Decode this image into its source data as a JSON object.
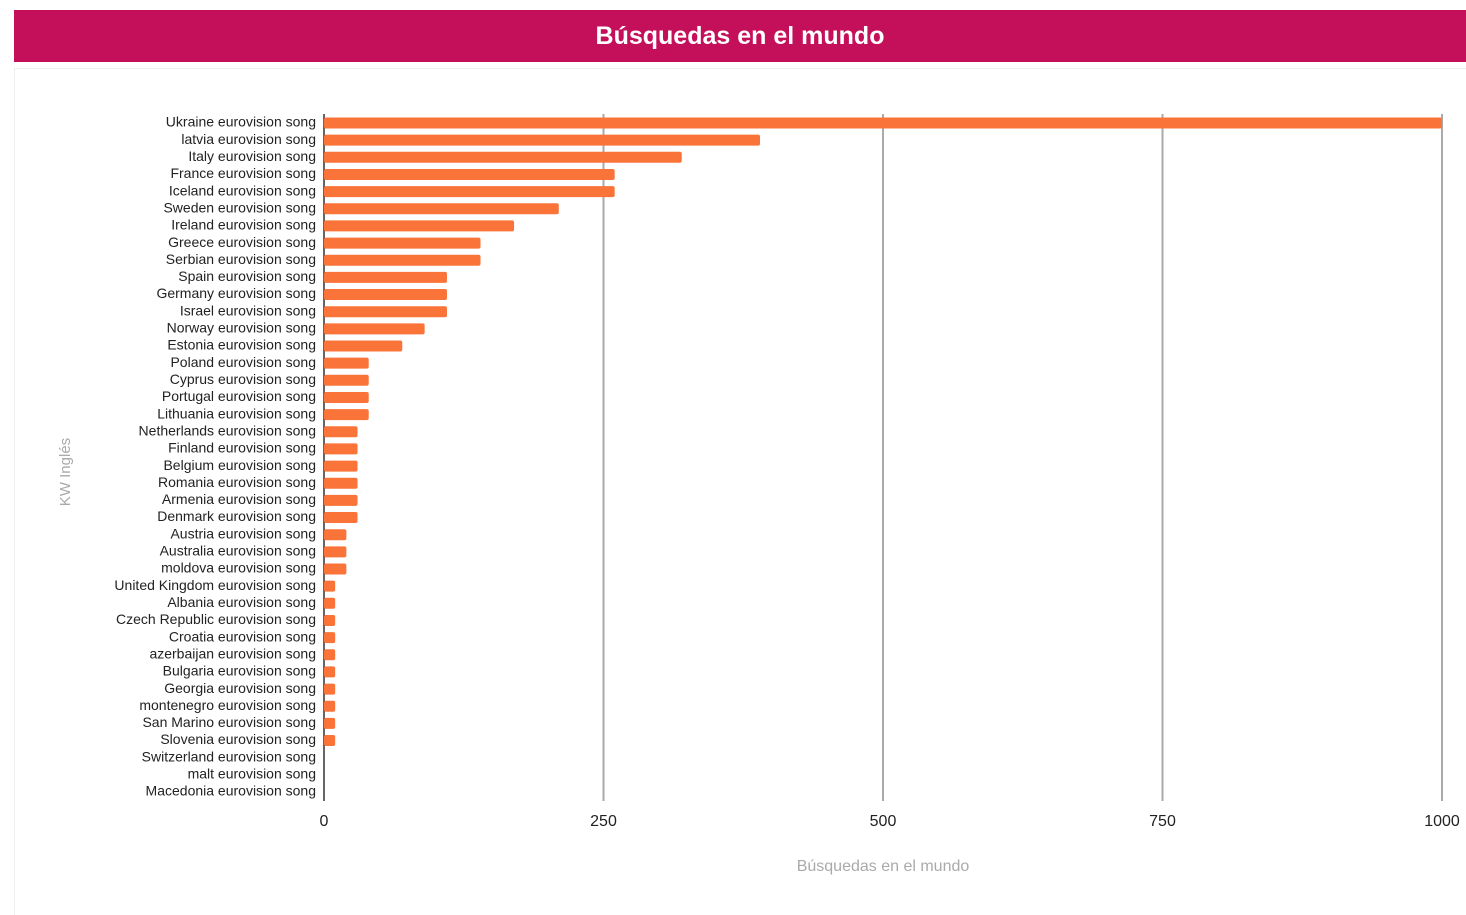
{
  "chart_data": {
    "type": "bar",
    "orientation": "horizontal",
    "title": "Búsquedas en el mundo",
    "x_label": "Búsquedas en el mundo",
    "y_label": "KW Inglés",
    "categories": [
      "Ukraine eurovision song",
      "latvia eurovision song",
      "Italy eurovision song",
      "France eurovision song",
      "Iceland eurovision song",
      "Sweden eurovision song",
      "Ireland eurovision song",
      "Greece eurovision song",
      "Serbian eurovision song",
      "Spain eurovision song",
      "Germany eurovision song",
      "Israel eurovision song",
      "Norway eurovision song",
      "Estonia eurovision song",
      "Poland eurovision song",
      "Cyprus eurovision song",
      "Portugal eurovision song",
      "Lithuania eurovision song",
      "Netherlands eurovision song",
      "Finland eurovision song",
      "Belgium eurovision song",
      "Romania eurovision song",
      "Armenia eurovision song",
      "Denmark eurovision song",
      "Austria eurovision song",
      "Australia eurovision song",
      "moldova eurovision song",
      "United Kingdom eurovision song",
      "Albania eurovision song",
      "Czech Republic eurovision song",
      "Croatia eurovision song",
      "azerbaijan eurovision song",
      "Bulgaria eurovision song",
      "Georgia eurovision song",
      "montenegro eurovision song",
      "San Marino eurovision song",
      "Slovenia eurovision song",
      "Switzerland eurovision song",
      "malt eurovision song",
      "Macedonia eurovision song"
    ],
    "values": [
      1000,
      390,
      320,
      260,
      260,
      210,
      170,
      140,
      140,
      110,
      110,
      110,
      90,
      70,
      40,
      40,
      40,
      40,
      30,
      30,
      30,
      30,
      30,
      30,
      20,
      20,
      20,
      10,
      10,
      10,
      10,
      10,
      10,
      10,
      10,
      10,
      10,
      0,
      0,
      0
    ],
    "color": "#fa7338",
    "xlim": [
      0,
      1000
    ],
    "xticks": [
      0,
      250,
      500,
      750,
      1000
    ],
    "grid": true
  }
}
